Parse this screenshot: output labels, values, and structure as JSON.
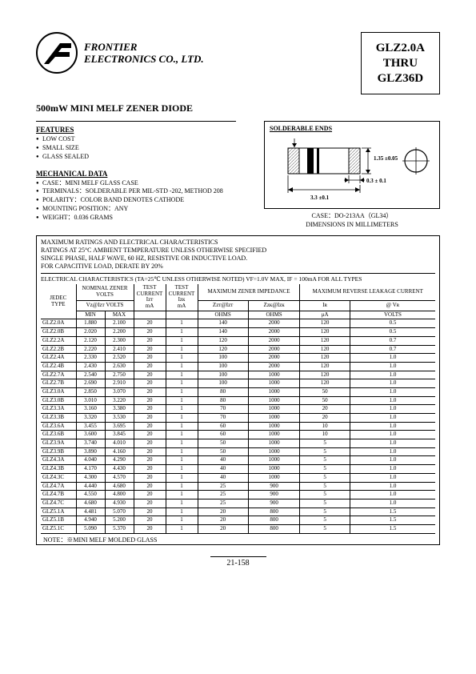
{
  "company": {
    "line1": "FRONTIER",
    "line2": "ELECTRONICS CO., LTD."
  },
  "partbox": {
    "l1": "GLZ2.0A",
    "l2": "THRU",
    "l3": "GLZ36D"
  },
  "title": "500mW MINI MELF ZENER DIODE",
  "features": {
    "head": "FEATURES",
    "items": [
      "LOW COST",
      "SMALL SIZE",
      "GLASS SEALED"
    ]
  },
  "mech": {
    "head": "MECHANICAL DATA",
    "items": [
      "CASE：MINI MELF GLASS CASE",
      "TERMINALS：SOLDERABLE PER MIL-STD -202, METHOD 208",
      "POLARITY：COLOR BAND DENOTES CATHODE",
      "MOUNTING POSITION：ANY",
      "WEIGHT：0.036 GRAMS"
    ]
  },
  "diagram": {
    "solderable": "SOLDERABLE ENDS",
    "dim_len": "3.3  ±0.1",
    "dim_h": "1.35  ±0.05",
    "dim_w": "0.3  ± 0.1",
    "case": "CASE：DO-213AA（GL34）",
    "units": "DIMENSIONS IN MILLIMETERS"
  },
  "ratings": {
    "l1": "MAXIMUM RATINGS AND ELECTRICAL CHARACTERISTICS",
    "l2": "RATINGS AT 25°C AMBIENT TEMPERATURE UNLESS OTHERWISE SPECIFIED",
    "l3": "SINGLE PHASE, HALF WAVE, 60 HZ, RESISTIVE OR INDUCTIVE LOAD.",
    "l4": "FOR CAPACITIVE LOAD, DERATE BY 20%"
  },
  "elec_head": "ELECTRICAL CHARACTERISTICS (TA=25℃ UNLESS OTHERWISE NOTED) VF=1.0V MAX, IF = 100mA FOR ALL TYPES",
  "cols": {
    "jedec": "JEDEC TYPE",
    "nominal": "NOMINAL ZENER VOLTS",
    "vz": "Vz@Izт  VOLTS",
    "test_izt": "TEST CURRENT",
    "izt": "Izт",
    "test_izk": "TEST CURRENT",
    "izk": "Izк",
    "ma": "mA",
    "imped": "MAXIMUM ZENER IMPEDANCE",
    "zzt": "Zzт@Izт",
    "zzk": "Zzк@Izк",
    "ohms": "OHMS",
    "rev": "MAXIMUM REVERSE LEAKAGE CURRENT",
    "ir": "Iʀ",
    "atvr": "@ Vʀ",
    "ua": "μA",
    "volts": "VOLTS",
    "min": "MIN",
    "max": "MAX"
  },
  "rows": [
    [
      "GLZ2.0A",
      "1.880",
      "2.100",
      "20",
      "1",
      "140",
      "2000",
      "120",
      "0.5"
    ],
    [
      "GLZ2.0B",
      "2.020",
      "2.200",
      "20",
      "1",
      "140",
      "2000",
      "120",
      "0.5"
    ],
    [
      "GLZ2.2A",
      "2.120",
      "2.300",
      "20",
      "1",
      "120",
      "2000",
      "120",
      "0.7"
    ],
    [
      "GLZ2.2B",
      "2.220",
      "2.410",
      "20",
      "1",
      "120",
      "2000",
      "120",
      "0.7"
    ],
    [
      "GLZ2.4A",
      "2.330",
      "2.520",
      "20",
      "1",
      "100",
      "2000",
      "120",
      "1.0"
    ],
    [
      "GLZ2.4B",
      "2.430",
      "2.630",
      "20",
      "1",
      "100",
      "2000",
      "120",
      "1.0"
    ],
    [
      "GLZ2.7A",
      "2.540",
      "2.750",
      "20",
      "1",
      "100",
      "1000",
      "120",
      "1.0"
    ],
    [
      "GLZ2.7B",
      "2.690",
      "2.910",
      "20",
      "1",
      "100",
      "1000",
      "120",
      "1.0"
    ],
    [
      "GLZ3.0A",
      "2.850",
      "3.070",
      "20",
      "1",
      "80",
      "1000",
      "50",
      "1.0"
    ],
    [
      "GLZ3.0B",
      "3.010",
      "3.220",
      "20",
      "1",
      "80",
      "1000",
      "50",
      "1.0"
    ],
    [
      "GLZ3.3A",
      "3.160",
      "3.380",
      "20",
      "1",
      "70",
      "1000",
      "20",
      "1.0"
    ],
    [
      "GLZ3.3B",
      "3.320",
      "3.530",
      "20",
      "1",
      "70",
      "1000",
      "20",
      "1.0"
    ],
    [
      "GLZ3.6A",
      "3.455",
      "3.695",
      "20",
      "1",
      "60",
      "1000",
      "10",
      "1.0"
    ],
    [
      "GLZ3.6B",
      "3.600",
      "3.845",
      "20",
      "1",
      "60",
      "1000",
      "10",
      "1.0"
    ],
    [
      "GLZ3.9A",
      "3.740",
      "4.010",
      "20",
      "1",
      "50",
      "1000",
      "5",
      "1.0"
    ],
    [
      "GLZ3.9B",
      "3.890",
      "4.160",
      "20",
      "1",
      "50",
      "1000",
      "5",
      "1.0"
    ],
    [
      "GLZ4.3A",
      "4.040",
      "4.290",
      "20",
      "1",
      "40",
      "1000",
      "5",
      "1.0"
    ],
    [
      "GLZ4.3B",
      "4.170",
      "4.430",
      "20",
      "1",
      "40",
      "1000",
      "5",
      "1.0"
    ],
    [
      "GLZ4.3C",
      "4.300",
      "4.570",
      "20",
      "1",
      "40",
      "1000",
      "5",
      "1.0"
    ],
    [
      "GLZ4.7A",
      "4.440",
      "4.680",
      "20",
      "1",
      "25",
      "900",
      "5",
      "1.0"
    ],
    [
      "GLZ4.7B",
      "4.550",
      "4.800",
      "20",
      "1",
      "25",
      "900",
      "5",
      "1.0"
    ],
    [
      "GLZ4.7C",
      "4.680",
      "4.930",
      "20",
      "1",
      "25",
      "900",
      "5",
      "1.0"
    ],
    [
      "GLZ5.1A",
      "4.481",
      "5.070",
      "20",
      "1",
      "20",
      "800",
      "5",
      "1.5"
    ],
    [
      "GLZ5.1B",
      "4.940",
      "5.200",
      "20",
      "1",
      "20",
      "800",
      "5",
      "1.5"
    ],
    [
      "GLZ5.1C",
      "5.090",
      "5.370",
      "20",
      "1",
      "20",
      "800",
      "5",
      "1.5"
    ]
  ],
  "note": "NOTE：※MINI MELF MOLDED GLASS",
  "page": "21-158",
  "colors": {
    "text": "#000000",
    "bg": "#ffffff",
    "hatch": "#8a8a8a"
  }
}
